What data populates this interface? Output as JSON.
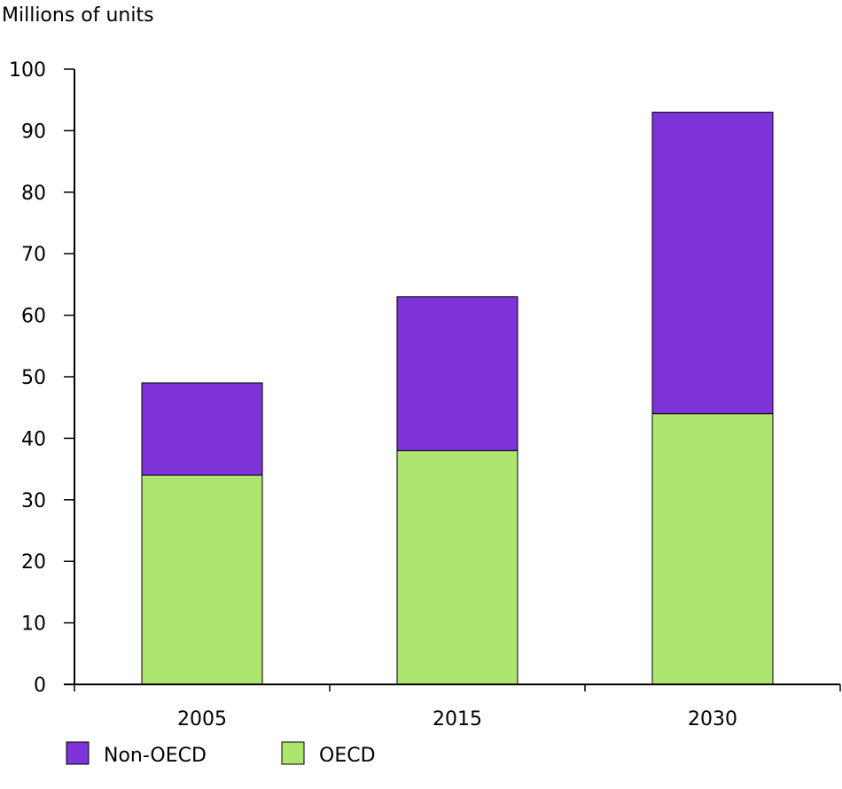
{
  "chart_data": {
    "type": "bar",
    "stacked": true,
    "title": "",
    "xlabel": "",
    "ylabel": "Millions of units",
    "categories": [
      "2005",
      "2015",
      "2030"
    ],
    "series": [
      {
        "name": "OECD",
        "color": "#aee571",
        "values": [
          34,
          38,
          44
        ]
      },
      {
        "name": "Non-OECD",
        "color": "#7e33d8",
        "values": [
          15,
          25,
          49
        ]
      }
    ],
    "ylim": [
      0,
      100
    ],
    "yticks": [
      0,
      10,
      20,
      30,
      40,
      50,
      60,
      70,
      80,
      90,
      100
    ],
    "grid": false,
    "legend_position": "bottom-left",
    "legend_order": [
      "Non-OECD",
      "OECD"
    ]
  }
}
